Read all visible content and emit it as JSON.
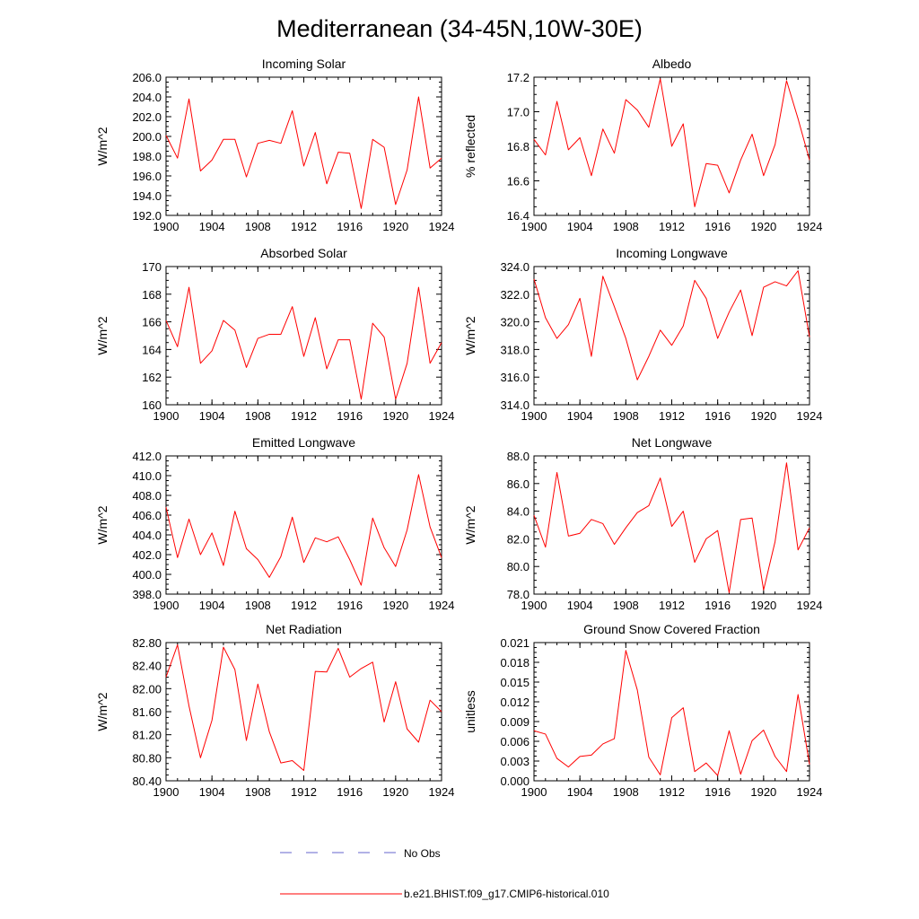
{
  "figure": {
    "title": "Mediterranean (34-45N,10W-30E)",
    "legend": [
      {
        "label": "No Obs",
        "color": "#6666cc",
        "style": "dashed"
      },
      {
        "label": "b.e21.BHIST.f09_g17.CMIP6-historical.010",
        "color": "#ff0000",
        "style": "solid"
      }
    ]
  },
  "chart_data": [
    {
      "type": "line",
      "title": "Incoming Solar",
      "ylabel": "W/m^2",
      "xlim": [
        1900,
        1924
      ],
      "ylim": [
        192.0,
        206.0
      ],
      "x_ticks": [
        "1900",
        "1904",
        "1908",
        "1912",
        "1916",
        "1920",
        "1924"
      ],
      "y_ticks": [
        "192.0",
        "194.0",
        "196.0",
        "198.0",
        "200.0",
        "202.0",
        "204.0",
        "206.0"
      ],
      "grid": false,
      "series": [
        {
          "color": "#ff0000",
          "x": [
            1900,
            1901,
            1902,
            1903,
            1904,
            1905,
            1906,
            1907,
            1908,
            1909,
            1910,
            1911,
            1912,
            1913,
            1914,
            1915,
            1916,
            1917,
            1918,
            1919,
            1920,
            1921,
            1922,
            1923,
            1924
          ],
          "values": [
            200.1,
            197.8,
            203.8,
            196.5,
            197.6,
            199.7,
            199.7,
            195.9,
            199.3,
            199.6,
            199.3,
            202.6,
            197.0,
            200.4,
            195.2,
            198.4,
            198.3,
            192.7,
            199.7,
            198.9,
            193.1,
            196.6,
            204.0,
            196.8,
            197.8
          ]
        }
      ]
    },
    {
      "type": "line",
      "title": "Albedo",
      "ylabel": "% reflected",
      "xlim": [
        1900,
        1924
      ],
      "ylim": [
        16.4,
        17.2
      ],
      "x_ticks": [
        "1900",
        "1904",
        "1908",
        "1912",
        "1916",
        "1920",
        "1924"
      ],
      "y_ticks": [
        "16.4",
        "16.6",
        "16.8",
        "17.0",
        "17.2"
      ],
      "grid": false,
      "series": [
        {
          "color": "#ff0000",
          "x": [
            1900,
            1901,
            1902,
            1903,
            1904,
            1905,
            1906,
            1907,
            1908,
            1909,
            1910,
            1911,
            1912,
            1913,
            1914,
            1915,
            1916,
            1917,
            1918,
            1919,
            1920,
            1921,
            1922,
            1923,
            1924
          ],
          "values": [
            16.84,
            16.75,
            17.06,
            16.78,
            16.85,
            16.63,
            16.9,
            16.76,
            17.07,
            17.01,
            16.91,
            17.19,
            16.8,
            16.93,
            16.45,
            16.7,
            16.69,
            16.53,
            16.72,
            16.87,
            16.63,
            16.81,
            17.18,
            16.96,
            16.72
          ]
        }
      ]
    },
    {
      "type": "line",
      "title": "Absorbed Solar",
      "ylabel": "W/m^2",
      "xlim": [
        1900,
        1924
      ],
      "ylim": [
        160,
        170
      ],
      "x_ticks": [
        "1900",
        "1904",
        "1908",
        "1912",
        "1916",
        "1920",
        "1924"
      ],
      "y_ticks": [
        "160",
        "162",
        "164",
        "166",
        "168",
        "170"
      ],
      "grid": false,
      "series": [
        {
          "color": "#ff0000",
          "x": [
            1900,
            1901,
            1902,
            1903,
            1904,
            1905,
            1906,
            1907,
            1908,
            1909,
            1910,
            1911,
            1912,
            1913,
            1914,
            1915,
            1916,
            1917,
            1918,
            1919,
            1920,
            1921,
            1922,
            1923,
            1924
          ],
          "values": [
            166.1,
            164.2,
            168.5,
            163.0,
            163.9,
            166.1,
            165.4,
            162.7,
            164.8,
            165.1,
            165.1,
            167.1,
            163.5,
            166.3,
            162.6,
            164.7,
            164.7,
            160.4,
            165.9,
            164.9,
            160.4,
            163.0,
            168.5,
            163.0,
            164.5
          ]
        }
      ]
    },
    {
      "type": "line",
      "title": "Incoming Longwave",
      "ylabel": "W/m^2",
      "xlim": [
        1900,
        1924
      ],
      "ylim": [
        314.0,
        324.0
      ],
      "x_ticks": [
        "1900",
        "1904",
        "1908",
        "1912",
        "1916",
        "1920",
        "1924"
      ],
      "y_ticks": [
        "314.0",
        "316.0",
        "318.0",
        "320.0",
        "322.0",
        "324.0"
      ],
      "grid": false,
      "series": [
        {
          "color": "#ff0000",
          "x": [
            1900,
            1901,
            1902,
            1903,
            1904,
            1905,
            1906,
            1907,
            1908,
            1909,
            1910,
            1911,
            1912,
            1913,
            1914,
            1915,
            1916,
            1917,
            1918,
            1919,
            1920,
            1921,
            1922,
            1923,
            1924
          ],
          "values": [
            323.1,
            320.3,
            318.8,
            319.8,
            321.7,
            317.5,
            323.3,
            321.1,
            318.8,
            315.8,
            317.5,
            319.4,
            318.3,
            319.7,
            323.0,
            321.7,
            318.8,
            320.7,
            322.3,
            319.0,
            322.5,
            322.9,
            322.6,
            323.7,
            318.9
          ]
        }
      ]
    },
    {
      "type": "line",
      "title": "Emitted Longwave",
      "ylabel": "W/m^2",
      "xlim": [
        1900,
        1924
      ],
      "ylim": [
        398.0,
        412.0
      ],
      "x_ticks": [
        "1900",
        "1904",
        "1908",
        "1912",
        "1916",
        "1920",
        "1924"
      ],
      "y_ticks": [
        "398.0",
        "400.0",
        "402.0",
        "404.0",
        "406.0",
        "408.0",
        "410.0",
        "412.0"
      ],
      "grid": false,
      "series": [
        {
          "color": "#ff0000",
          "x": [
            1900,
            1901,
            1902,
            1903,
            1904,
            1905,
            1906,
            1907,
            1908,
            1909,
            1910,
            1911,
            1912,
            1913,
            1914,
            1915,
            1916,
            1917,
            1918,
            1919,
            1920,
            1921,
            1922,
            1923,
            1924
          ],
          "values": [
            406.8,
            401.7,
            405.6,
            402.0,
            404.2,
            400.9,
            406.4,
            402.6,
            401.5,
            399.7,
            401.8,
            405.8,
            401.2,
            403.7,
            403.3,
            403.8,
            401.5,
            398.9,
            405.7,
            402.7,
            400.8,
            404.5,
            410.1,
            404.8,
            401.7
          ]
        }
      ]
    },
    {
      "type": "line",
      "title": "Net Longwave",
      "ylabel": "W/m^2",
      "xlim": [
        1900,
        1924
      ],
      "ylim": [
        78.0,
        88.0
      ],
      "x_ticks": [
        "1900",
        "1904",
        "1908",
        "1912",
        "1916",
        "1920",
        "1924"
      ],
      "y_ticks": [
        "78.0",
        "80.0",
        "82.0",
        "84.0",
        "86.0",
        "88.0"
      ],
      "grid": false,
      "series": [
        {
          "color": "#ff0000",
          "x": [
            1900,
            1901,
            1902,
            1903,
            1904,
            1905,
            1906,
            1907,
            1908,
            1909,
            1910,
            1911,
            1912,
            1913,
            1914,
            1915,
            1916,
            1917,
            1918,
            1919,
            1920,
            1921,
            1922,
            1923,
            1924
          ],
          "values": [
            83.7,
            81.4,
            86.8,
            82.2,
            82.4,
            83.4,
            83.1,
            81.6,
            82.8,
            83.9,
            84.4,
            86.4,
            82.9,
            84.0,
            80.3,
            82.0,
            82.6,
            78.1,
            83.4,
            83.5,
            78.3,
            81.8,
            87.5,
            81.2,
            82.8
          ]
        }
      ]
    },
    {
      "type": "line",
      "title": "Net Radiation",
      "ylabel": "W/m^2",
      "xlim": [
        1900,
        1924
      ],
      "ylim": [
        80.4,
        82.8
      ],
      "x_ticks": [
        "1900",
        "1904",
        "1908",
        "1912",
        "1916",
        "1920",
        "1924"
      ],
      "y_ticks": [
        "80.40",
        "80.80",
        "81.20",
        "81.60",
        "82.00",
        "82.40",
        "82.80"
      ],
      "grid": false,
      "series": [
        {
          "color": "#ff0000",
          "x": [
            1900,
            1901,
            1902,
            1903,
            1904,
            1905,
            1906,
            1907,
            1908,
            1909,
            1910,
            1911,
            1912,
            1913,
            1914,
            1915,
            1916,
            1917,
            1918,
            1919,
            1920,
            1921,
            1922,
            1923,
            1924
          ],
          "values": [
            82.2,
            82.76,
            81.7,
            80.8,
            81.45,
            82.72,
            82.33,
            81.1,
            82.08,
            81.25,
            80.71,
            80.75,
            80.58,
            82.3,
            82.29,
            82.7,
            82.2,
            82.35,
            82.46,
            81.42,
            82.12,
            81.3,
            81.07,
            81.8,
            81.6
          ]
        }
      ]
    },
    {
      "type": "line",
      "title": "Ground Snow Covered Fraction",
      "ylabel": "unitless",
      "xlim": [
        1900,
        1924
      ],
      "ylim": [
        0.0,
        0.021
      ],
      "x_ticks": [
        "1900",
        "1904",
        "1908",
        "1912",
        "1916",
        "1920",
        "1924"
      ],
      "y_ticks": [
        "0.000",
        "0.003",
        "0.006",
        "0.009",
        "0.012",
        "0.015",
        "0.018",
        "0.021"
      ],
      "grid": false,
      "series": [
        {
          "color": "#ff0000",
          "x": [
            1900,
            1901,
            1902,
            1903,
            1904,
            1905,
            1906,
            1907,
            1908,
            1909,
            1910,
            1911,
            1912,
            1913,
            1914,
            1915,
            1916,
            1917,
            1918,
            1919,
            1920,
            1921,
            1922,
            1923,
            1924
          ],
          "values": [
            0.0076,
            0.0071,
            0.0034,
            0.0021,
            0.0037,
            0.0039,
            0.0056,
            0.0064,
            0.0198,
            0.0138,
            0.0036,
            0.0009,
            0.0096,
            0.0111,
            0.0014,
            0.0027,
            0.0008,
            0.0076,
            0.001,
            0.0061,
            0.0077,
            0.0037,
            0.0014,
            0.0131,
            0.0025
          ]
        }
      ]
    }
  ]
}
